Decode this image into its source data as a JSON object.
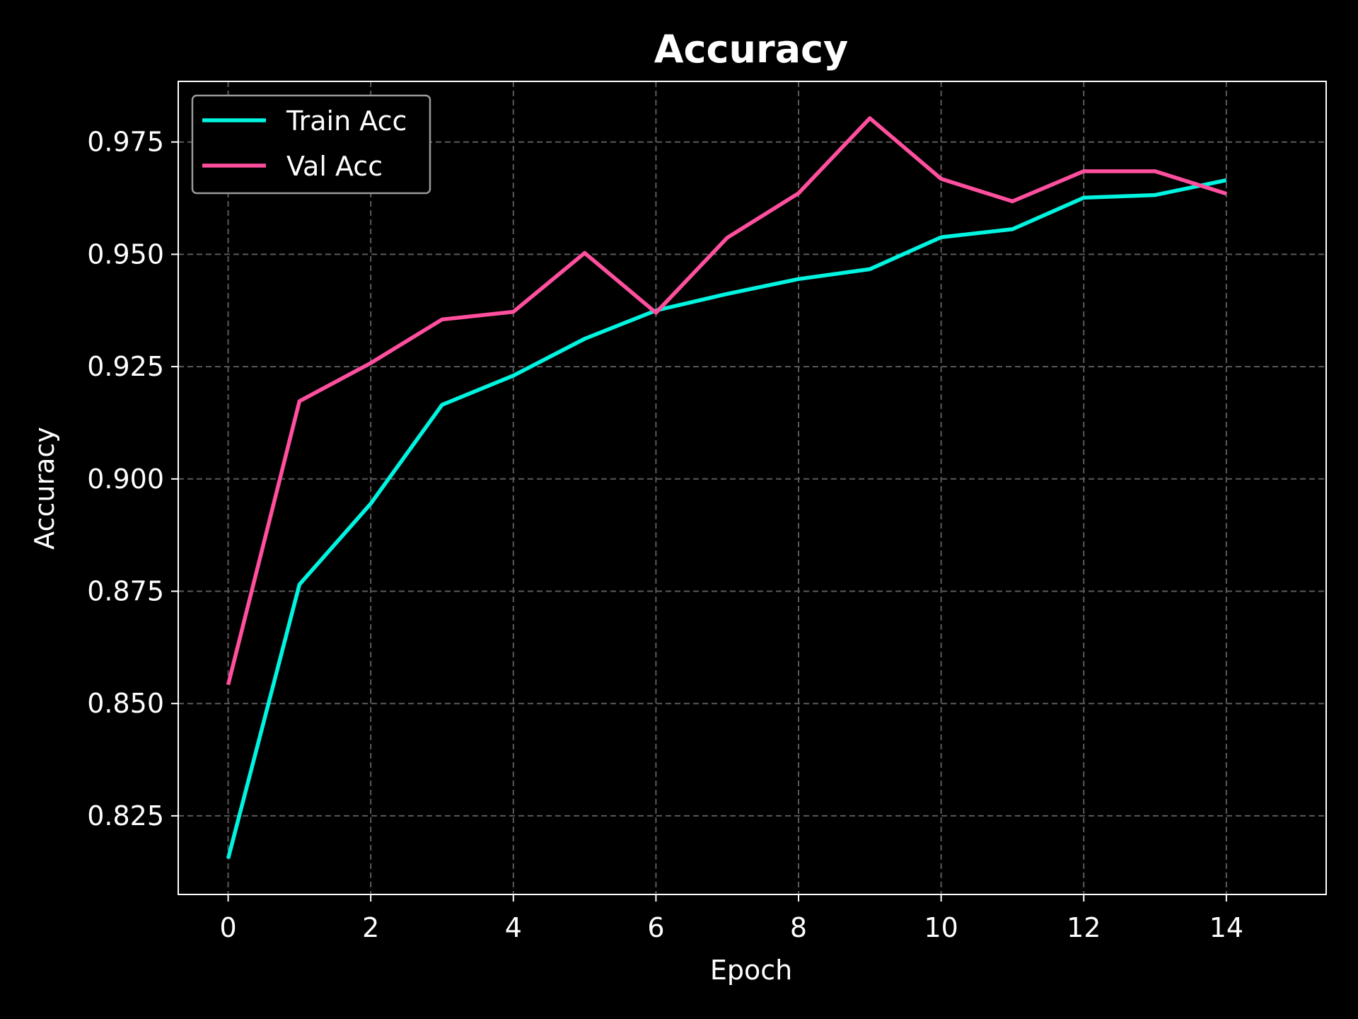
{
  "chart_data": {
    "type": "line",
    "title": "Accuracy",
    "xlabel": "Epoch",
    "ylabel": "Accuracy",
    "x": [
      0,
      1,
      2,
      3,
      4,
      5,
      6,
      7,
      8,
      9,
      10,
      11,
      12,
      13,
      14
    ],
    "xlim": [
      -0.7,
      15.4
    ],
    "ylim": [
      0.8075,
      0.9885
    ],
    "xticks": [
      0,
      2,
      4,
      6,
      8,
      10,
      12,
      14
    ],
    "xtick_labels": [
      "0",
      "2",
      "4",
      "6",
      "8",
      "10",
      "12",
      "14"
    ],
    "yticks": [
      0.825,
      0.85,
      0.875,
      0.9,
      0.925,
      0.95,
      0.975
    ],
    "ytick_labels": [
      "0.825",
      "0.850",
      "0.875",
      "0.900",
      "0.925",
      "0.950",
      "0.975"
    ],
    "grid": true,
    "legend_position": "top-left",
    "series": [
      {
        "name": "Train Acc",
        "color": "#00f5e0",
        "values": [
          0.8155,
          0.8765,
          0.8945,
          0.9165,
          0.923,
          0.9312,
          0.9375,
          0.9412,
          0.9445,
          0.9467,
          0.9538,
          0.9556,
          0.9626,
          0.9632,
          0.9665
        ]
      },
      {
        "name": "Val Acc",
        "color": "#ff4f9e",
        "values": [
          0.8542,
          0.9173,
          0.9258,
          0.9355,
          0.9372,
          0.9503,
          0.937,
          0.9537,
          0.9636,
          0.9803,
          0.9668,
          0.9618,
          0.9685,
          0.9685,
          0.9635
        ]
      }
    ]
  }
}
